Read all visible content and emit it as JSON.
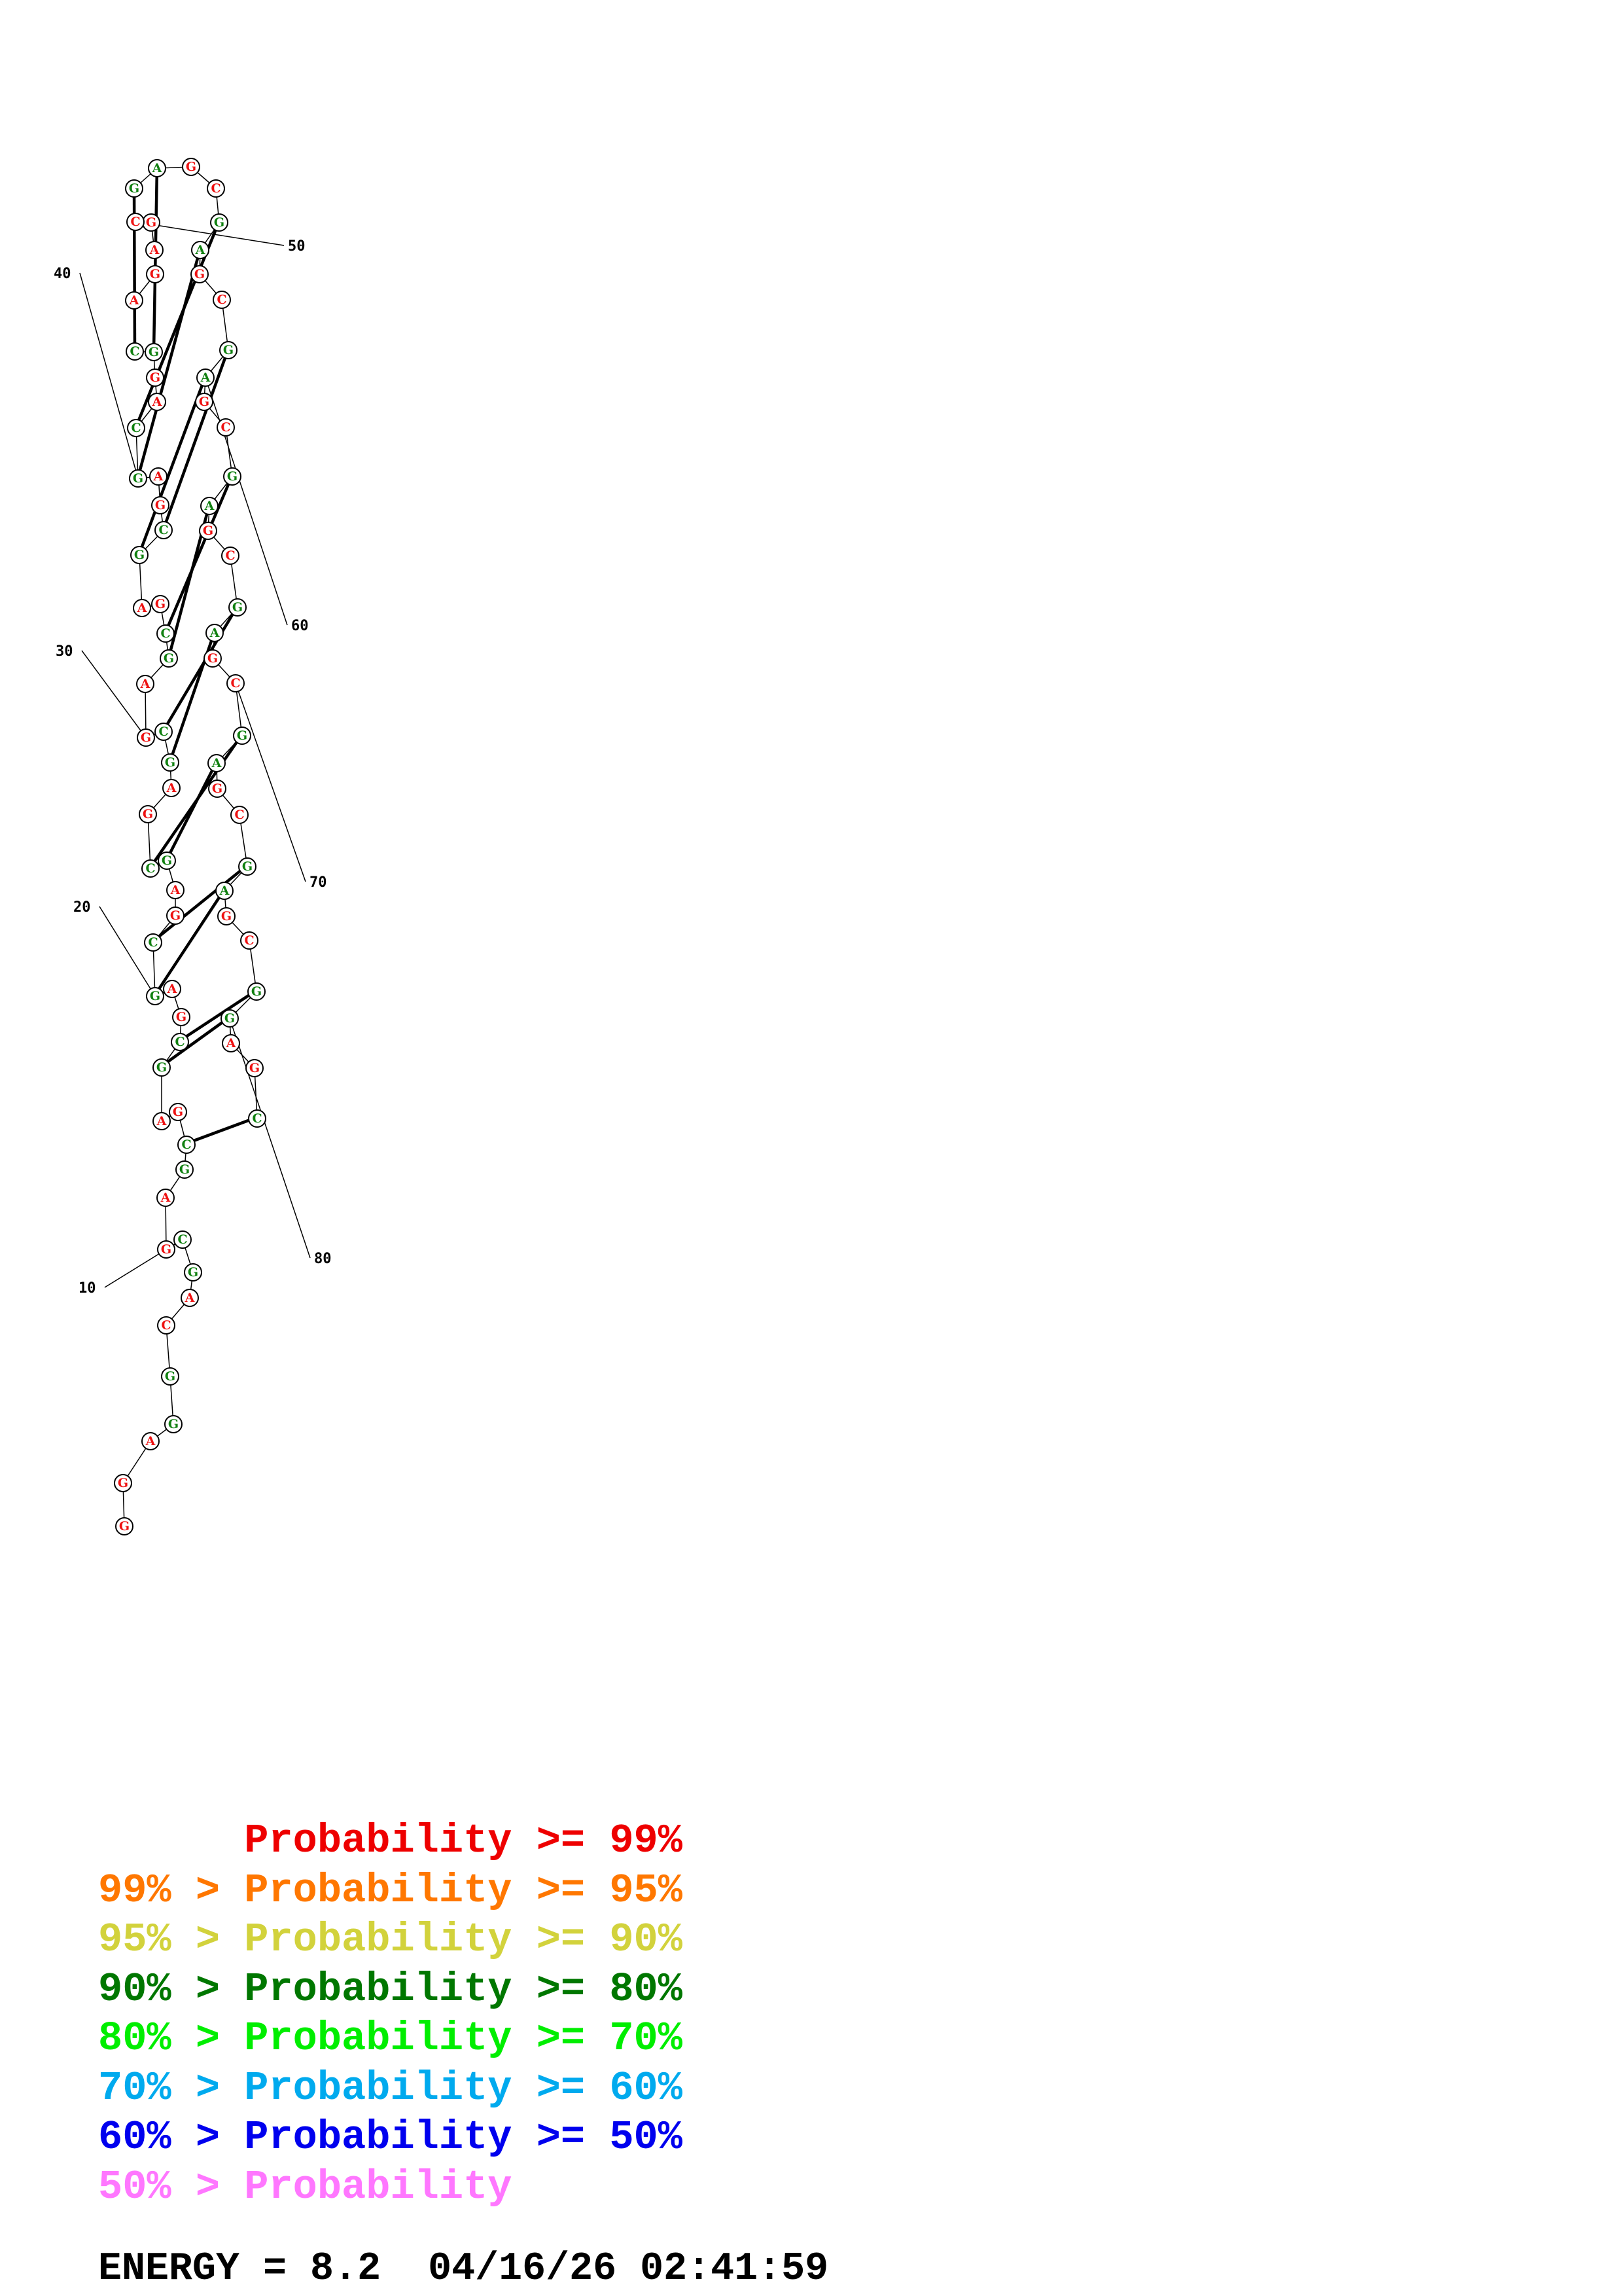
{
  "colors": {
    "unpaired": "#ee1111",
    "paired": "#108010",
    "backbone": "#000000"
  },
  "structure": {
    "sequence": "GGAGGCAGCGAGCGAGCGAGCGAGCGAGCGAGCGAGCGAGCAGGCAGAGCGAGCGAGCGAGCGAGCGAGCGAGCGAGCGGAGC",
    "tick_labels": [
      "10",
      "20",
      "30",
      "40",
      "50",
      "60",
      "70",
      "80"
    ]
  },
  "legend": [
    {
      "text": "      Probability >= 99%",
      "color": "#ee0000"
    },
    {
      "text": "99% > Probability >= 95%",
      "color": "#ff7700"
    },
    {
      "text": "95% > Probability >= 90%",
      "color": "#d2d23c"
    },
    {
      "text": "90% > Probability >= 80%",
      "color": "#007700"
    },
    {
      "text": "80% > Probability >= 70%",
      "color": "#00ee00"
    },
    {
      "text": "70% > Probability >= 60%",
      "color": "#00aaee"
    },
    {
      "text": "60% > Probability >= 50%",
      "color": "#0000ee"
    },
    {
      "text": "50% > Probability",
      "color": "#ff77ff"
    }
  ],
  "energy_line": "ENERGY = 8.2  04/16/26 02:41:59"
}
